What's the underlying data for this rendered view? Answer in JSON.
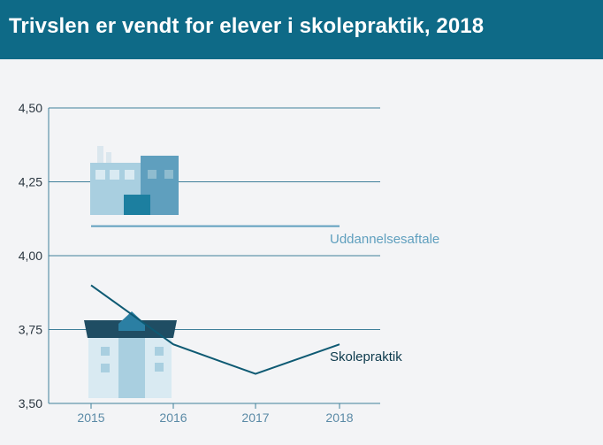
{
  "header": {
    "title": "Trivslen er vendt for elever i skolepraktik, 2018"
  },
  "chart_data": {
    "type": "line",
    "title": "Trivslen er vendt for elever i skolepraktik, 2018",
    "xlabel": "",
    "ylabel": "",
    "categories": [
      "2015",
      "2016",
      "2017",
      "2018"
    ],
    "ylim": [
      3.5,
      4.5
    ],
    "yticks": [
      3.5,
      3.75,
      4.0,
      4.25,
      4.5
    ],
    "ytick_labels": [
      "3,50",
      "3,75",
      "4,00",
      "4,25",
      "4,50"
    ],
    "grid": true,
    "series": [
      {
        "name": "Uddannelsesaftale",
        "values": [
          4.1,
          4.1,
          4.1,
          4.1
        ],
        "color": "#5f9fbe"
      },
      {
        "name": "Skolepraktik",
        "values": [
          3.9,
          3.7,
          3.6,
          3.7
        ],
        "color": "#0e5a73"
      }
    ],
    "icons": [
      "factory-icon",
      "school-building-icon"
    ]
  }
}
